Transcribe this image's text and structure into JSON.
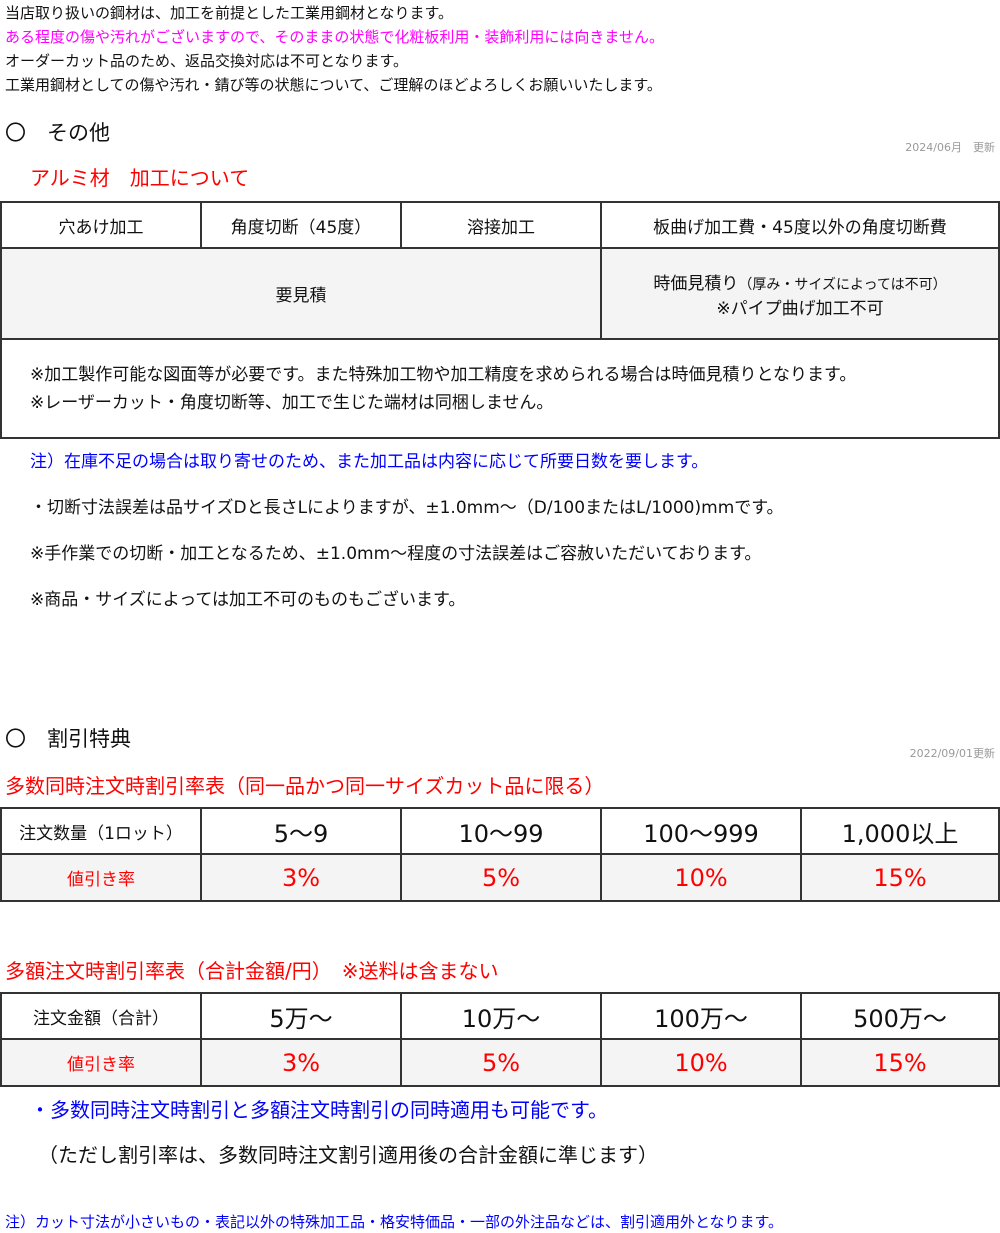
{
  "intro": [
    "当店取り扱いの鋼材は、加工を前提とした工業用鋼材となります。",
    "ある程度の傷や汚れがございますので、そのままの状態で化粧板利用・装飾利用には向きません。",
    "オーダーカット品のため、返品交換対応は不可となります。",
    "工業用鋼材としての傷や汚れ・錆び等の状態について、ご理解のほどよろしくお願いいたします。"
  ],
  "colors": {
    "magenta": "#ff00ff",
    "red": "#ff0000",
    "blue": "#0000ff"
  },
  "other": {
    "heading": "〇　その他",
    "updated": "2024/06月　更新",
    "subtitle": "アルミ材　加工について",
    "headers": [
      "穴あけ加工",
      "角度切断（45度）",
      "溶接加工",
      "板曲げ加工費・45度以外の角度切断費"
    ],
    "estimate": "要見積",
    "time_price": "時価見積り",
    "time_price_note": "（厚み・サイズによっては不可）",
    "pipe": "※パイプ曲げ加工不可",
    "notes": [
      "※加工製作可能な図面等が必要です。また特殊加工物や加工精度を求められる場合は時価見積りとなります。",
      "※レーザーカット・角度切断等、加工で生じた端材は同梱しません。"
    ],
    "after": [
      "注）在庫不足の場合は取り寄せのため、また加工品は内容に応じて所要日数を要します。",
      "・切断寸法誤差は品サイズDと長さLによりますが、±1.0mm～（D/100またはL/1000)mmです。",
      "※手作業での切断・加工となるため、±1.0mm～程度の寸法誤差はご容赦いただいております。",
      "※商品・サイズによっては加工不可のものもございます。"
    ]
  },
  "discount": {
    "heading": "〇　割引特典",
    "updated": "2022/09/01更新",
    "t1": {
      "title": "多数同時注文時割引率表（同一品かつ同一サイズカット品に限る）",
      "label": "注文数量（1ロット）",
      "cols": [
        "5～9",
        "10～99",
        "100～999",
        "1,000以上"
      ],
      "rate_label": "値引き率",
      "rates": [
        "3%",
        "5%",
        "10%",
        "15%"
      ]
    },
    "t2": {
      "title": "多額注文時割引率表（合計金額/円）　※送料は含まない",
      "label": "注文金額（合計）",
      "cols": [
        "5万～",
        "10万～",
        "100万～",
        "500万～"
      ],
      "rate_label": "値引き率",
      "rates": [
        "3%",
        "5%",
        "10%",
        "15%"
      ]
    },
    "note1": "・多数同時注文時割引と多額注文時割引の同時適用も可能です。",
    "note2": "（ただし割引率は、多数同時注文割引適用後の合計金額に準じます）",
    "footer": "注）カット寸法が小さいもの・表記以外の特殊加工品・格安特価品・一部の外注品などは、割引適用外となります。"
  }
}
